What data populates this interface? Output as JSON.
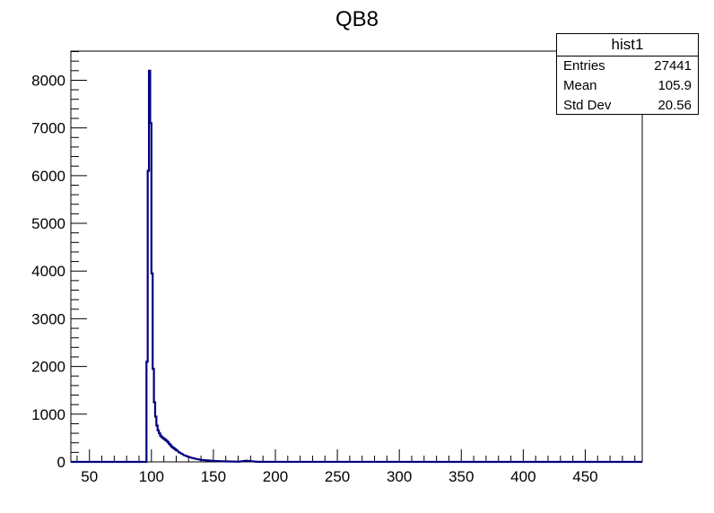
{
  "chart_data": {
    "type": "histogram",
    "title": "QB8",
    "xlabel": "",
    "ylabel": "",
    "xlim": [
      35,
      496
    ],
    "ylim": [
      0,
      8610
    ],
    "x_ticks": [
      50,
      100,
      150,
      200,
      250,
      300,
      350,
      400,
      450
    ],
    "x_tick_labels": [
      "50",
      "100",
      "150",
      "200",
      "250",
      "300",
      "350",
      "400",
      "450"
    ],
    "y_ticks": [
      0,
      1000,
      2000,
      3000,
      4000,
      5000,
      6000,
      7000,
      8000
    ],
    "y_tick_labels": [
      "0",
      "1000",
      "2000",
      "3000",
      "4000",
      "5000",
      "6000",
      "7000",
      "8000"
    ],
    "bin_width": 1,
    "series": [
      {
        "line_color": "#000080",
        "x": [
          35,
          95,
          96,
          97,
          98,
          99,
          100,
          101,
          102,
          103,
          104,
          105,
          106,
          107,
          108,
          109,
          110,
          111,
          112,
          113,
          114,
          115,
          116,
          117,
          118,
          119,
          120,
          122,
          124,
          126,
          128,
          130,
          133,
          136,
          140,
          145,
          150,
          155,
          160,
          170,
          176,
          185,
          200,
          496
        ],
        "values": [
          0,
          0,
          2100,
          6100,
          8200,
          7100,
          3950,
          1950,
          1250,
          950,
          760,
          660,
          600,
          550,
          520,
          500,
          480,
          460,
          440,
          410,
          380,
          350,
          320,
          300,
          280,
          260,
          240,
          200,
          170,
          140,
          120,
          100,
          80,
          60,
          40,
          30,
          20,
          15,
          10,
          5,
          25,
          3,
          1,
          0
        ]
      }
    ],
    "stats": {
      "title": "hist1",
      "rows": [
        {
          "label": "Entries",
          "value": "27441"
        },
        {
          "label": "Mean",
          "value": "105.9"
        },
        {
          "label": "Std Dev",
          "value": "20.56"
        }
      ]
    },
    "grid": false,
    "legend": "none"
  }
}
